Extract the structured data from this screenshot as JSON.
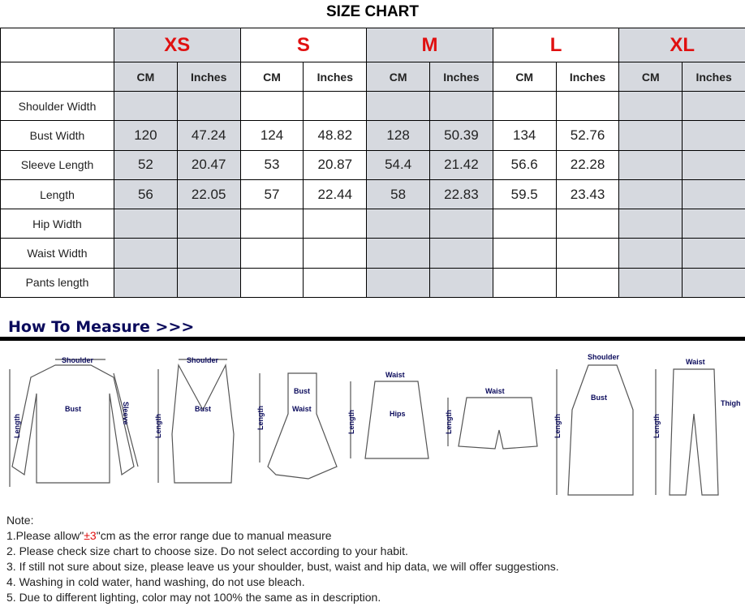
{
  "title": "SIZE CHART",
  "sizes": [
    "XS",
    "S",
    "M",
    "L",
    "XL"
  ],
  "units": [
    "CM",
    "Inches"
  ],
  "rows": [
    {
      "label": "Shoulder Width",
      "values": [
        "",
        "",
        "",
        "",
        "",
        "",
        "",
        "",
        "",
        ""
      ]
    },
    {
      "label": "Bust Width",
      "values": [
        "120",
        "47.24",
        "124",
        "48.82",
        "128",
        "50.39",
        "134",
        "52.76",
        "",
        ""
      ]
    },
    {
      "label": "Sleeve Length",
      "values": [
        "52",
        "20.47",
        "53",
        "20.87",
        "54.4",
        "21.42",
        "56.6",
        "22.28",
        "",
        ""
      ]
    },
    {
      "label": "Length",
      "values": [
        "56",
        "22.05",
        "57",
        "22.44",
        "58",
        "22.83",
        "59.5",
        "23.43",
        "",
        ""
      ]
    },
    {
      "label": "Hip Width",
      "values": [
        "",
        "",
        "",
        "",
        "",
        "",
        "",
        "",
        "",
        ""
      ]
    },
    {
      "label": "Waist Width",
      "values": [
        "",
        "",
        "",
        "",
        "",
        "",
        "",
        "",
        "",
        ""
      ]
    },
    {
      "label": "Pants length",
      "values": [
        "",
        "",
        "",
        "",
        "",
        "",
        "",
        "",
        "",
        ""
      ]
    }
  ],
  "how_to_measure": {
    "heading": "How To Measure >>>",
    "labels": {
      "shoulder": "Shoulder",
      "bust": "Bust",
      "sleeve": "Sleeve",
      "length": "Length",
      "waist": "Waist",
      "hips": "Hips",
      "thigh": "Thigh"
    }
  },
  "notes": {
    "heading": "Note:",
    "line1_pre": "1.Please allow\"",
    "line1_red": "±3",
    "line1_post": "\"cm as the error range due to manual measure",
    "line2": "2. Please check size chart to choose size. Do not select according to your habit.",
    "line3": "3. If still not sure about size, please leave us your shoulder, bust, waist and hip data, we will offer suggestions.",
    "line4": "4. Washing in cold water, hand washing, do not use bleach.",
    "line5": "5. Due to different lighting, color may not 100% the same as in description."
  },
  "colors": {
    "size_label": "#e01010",
    "shaded_column": "#d6d9df",
    "heading": "#0b0b5c"
  }
}
